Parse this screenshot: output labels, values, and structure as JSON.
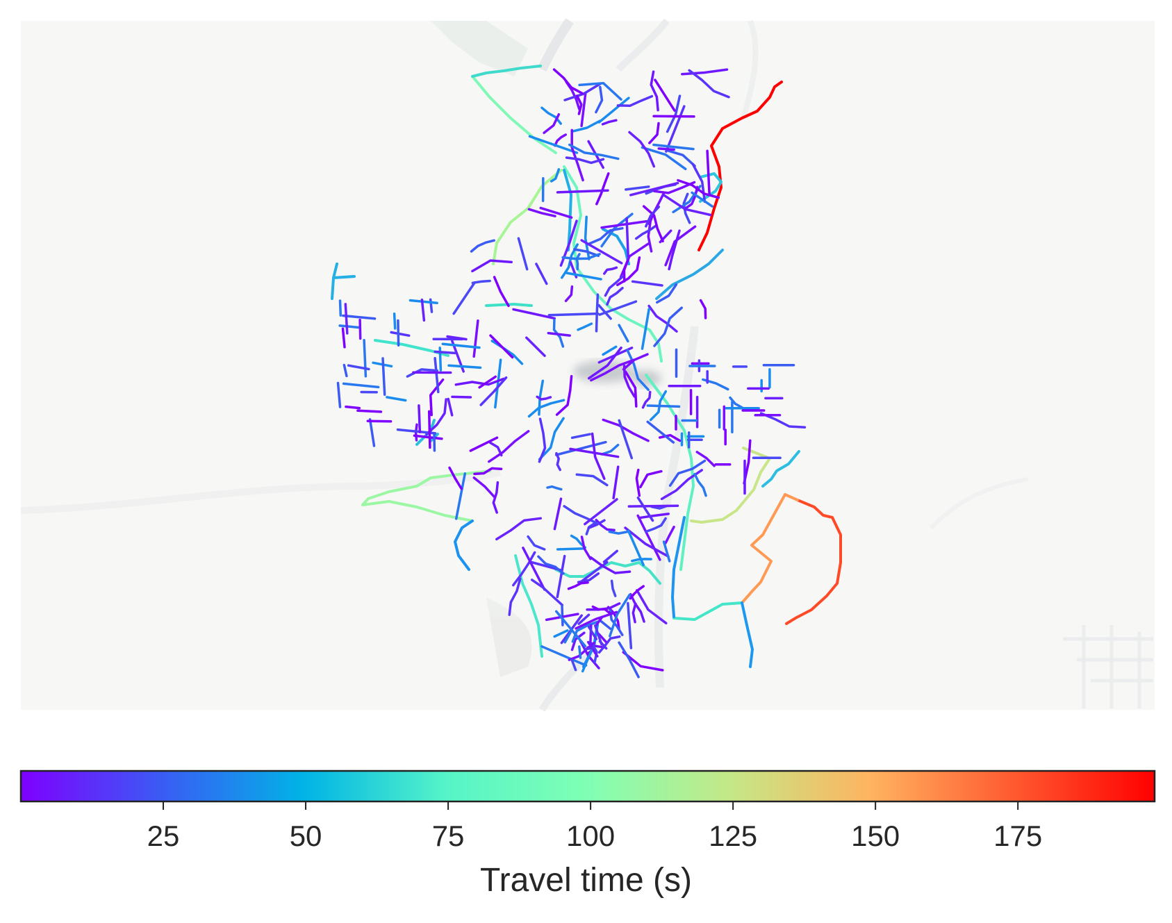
{
  "figure": {
    "type": "map",
    "content": "street network coloured by travel time"
  },
  "colorbar": {
    "label": "Travel time (s)",
    "min": 0,
    "max": 199,
    "ticks": [
      25,
      50,
      75,
      100,
      125,
      150,
      175
    ],
    "colormap": "rainbow",
    "stops": [
      "#7f00ff",
      "#3a5cf4",
      "#00b4e6",
      "#55f4c8",
      "#80ffb4",
      "#c4e888",
      "#ffb360",
      "#ff5a30",
      "#ff0000"
    ]
  },
  "colors": {
    "background": "#f7f7f6",
    "frame": "#ffffff",
    "colorbar_border": "#222222"
  }
}
